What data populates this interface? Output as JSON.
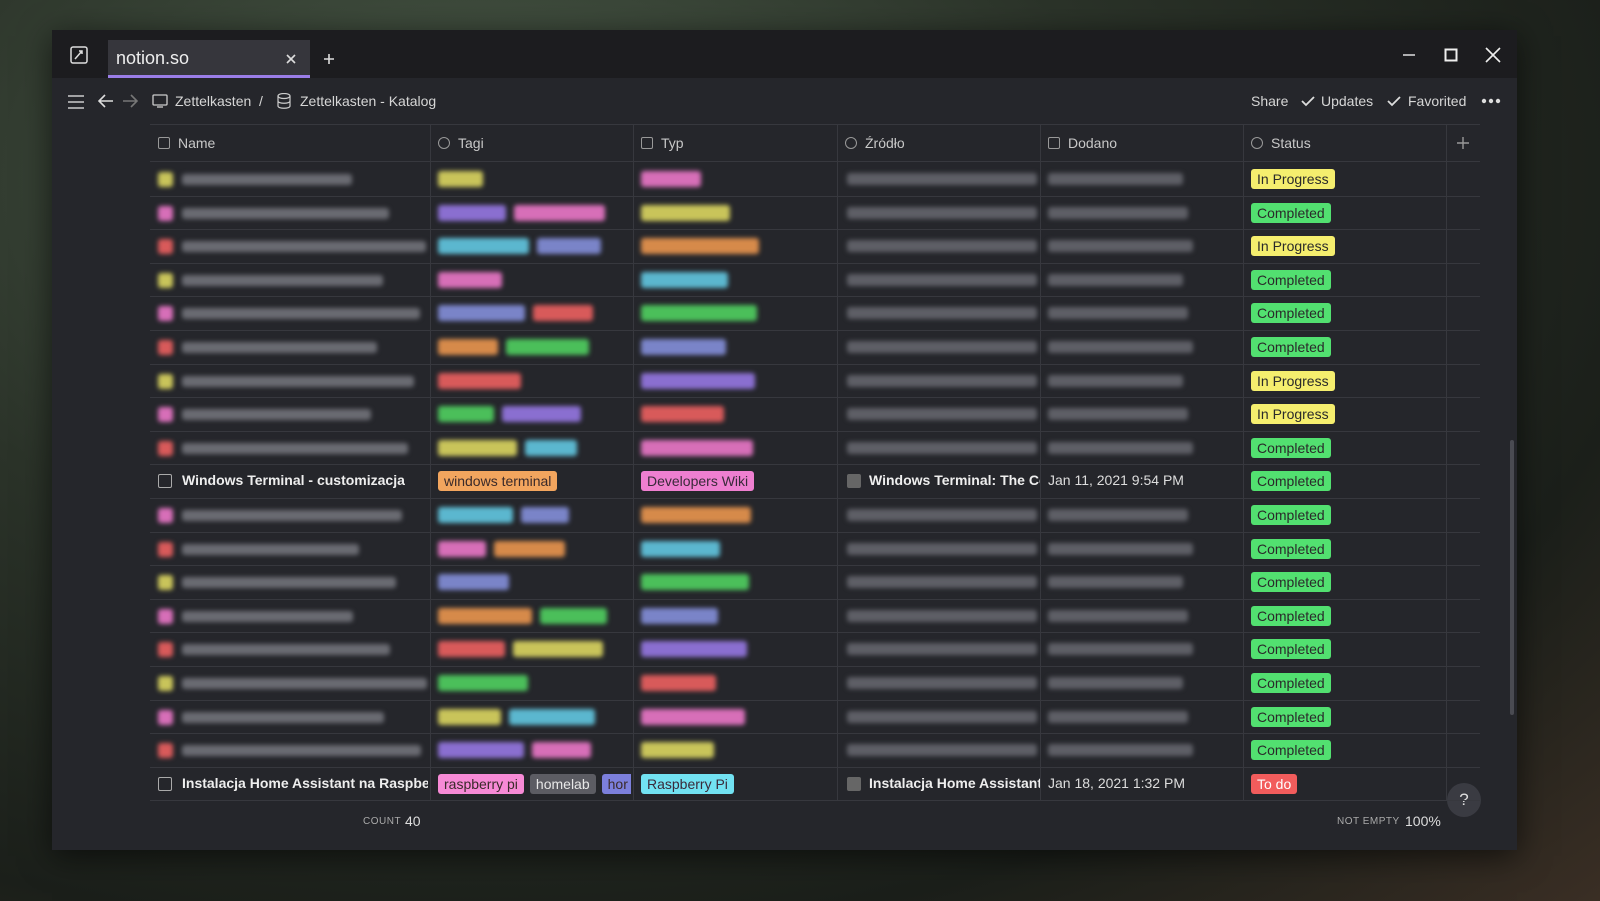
{
  "tab": {
    "title": "notion.so"
  },
  "breadcrumb": {
    "items": [
      "Zettelkasten",
      "Zettelkasten - Katalog"
    ],
    "separator": "/"
  },
  "actions": [
    "Share",
    "Updates",
    "Favorited"
  ],
  "table": {
    "columns": [
      "Name",
      "Tagi",
      "Typ",
      "Źródło",
      "Dodano",
      "Status"
    ],
    "rows": [
      {
        "status": {
          "label": "In Progress",
          "color": "#f5ee6e"
        }
      },
      {
        "status": {
          "label": "Completed",
          "color": "#52e070"
        }
      },
      {
        "status": {
          "label": "In Progress",
          "color": "#f5ee6e"
        }
      },
      {
        "status": {
          "label": "Completed",
          "color": "#52e070"
        }
      },
      {
        "status": {
          "label": "Completed",
          "color": "#52e070"
        }
      },
      {
        "status": {
          "label": "Completed",
          "color": "#52e070"
        }
      },
      {
        "status": {
          "label": "In Progress",
          "color": "#f5ee6e"
        }
      },
      {
        "status": {
          "label": "In Progress",
          "color": "#f5ee6e"
        }
      },
      {
        "status": {
          "label": "Completed",
          "color": "#52e070"
        }
      },
      {
        "name": "Windows Terminal - customizacja",
        "tags": [
          {
            "label": "windows terminal",
            "color": "#f2a55e"
          }
        ],
        "type": {
          "label": "Developers Wiki",
          "color": "#ee7fd0"
        },
        "source": "Windows Terminal: The Co",
        "added": "Jan 11, 2021 9:54 PM",
        "status": {
          "label": "Completed",
          "color": "#52e070"
        }
      },
      {
        "status": {
          "label": "Completed",
          "color": "#52e070"
        }
      },
      {
        "status": {
          "label": "Completed",
          "color": "#52e070"
        }
      },
      {
        "status": {
          "label": "Completed",
          "color": "#52e070"
        }
      },
      {
        "status": {
          "label": "Completed",
          "color": "#52e070"
        }
      },
      {
        "status": {
          "label": "Completed",
          "color": "#52e070"
        }
      },
      {
        "status": {
          "label": "Completed",
          "color": "#52e070"
        }
      },
      {
        "status": {
          "label": "Completed",
          "color": "#52e070"
        }
      },
      {
        "status": {
          "label": "Completed",
          "color": "#52e070"
        }
      },
      {
        "name": "Instalacja Home Assistant na Raspberr",
        "tags": [
          {
            "label": "raspberry pi",
            "color": "#f78ad6"
          },
          {
            "label": "homelab",
            "color": "#5c5c63"
          },
          {
            "label": "hor",
            "color": "#7c7fdc"
          }
        ],
        "type": {
          "label": "Raspberry Pi",
          "color": "#72e2f2"
        },
        "source": "Instalacja Home Assistant",
        "added": "Jan 18, 2021 1:32 PM",
        "status": {
          "label": "To do",
          "color": "#f25c5c"
        }
      }
    ]
  },
  "footer": {
    "count_label": "COUNT",
    "count": 40,
    "not_empty_label": "NOT EMPTY",
    "not_empty": "100%"
  },
  "help": "?"
}
